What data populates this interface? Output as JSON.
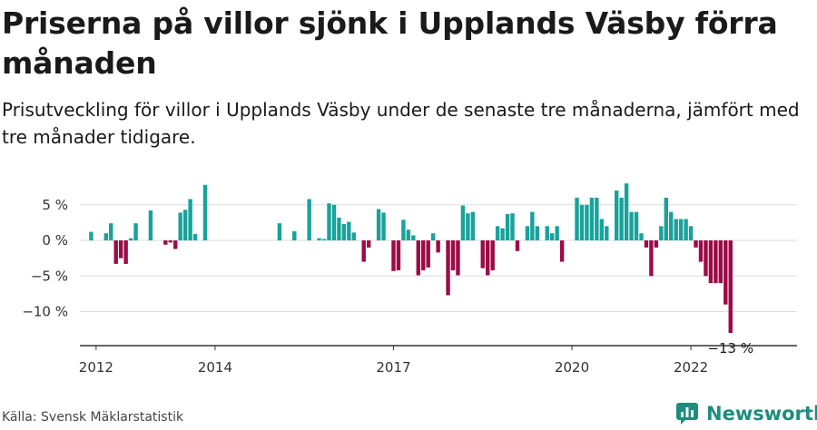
{
  "header": {
    "title": "Priserna på villor sjönk i Upplands Väsby förra månaden",
    "subtitle": "Prisutveckling för villor i Upplands Väsby under de senaste tre månaderna, jämfört med tre månader tidigare."
  },
  "footer": {
    "source": "Källa: Svensk Mäklarstatistik",
    "brand": "Newsworthy"
  },
  "colors": {
    "positive": "#17a39b",
    "negative": "#9c0a47",
    "grid": "#dddddd",
    "axis": "#333333",
    "brand": "#1e8c7e"
  },
  "chart_data": {
    "type": "bar",
    "title": "Priserna på villor sjönk i Upplands Väsby förra månaden",
    "ylabel": "",
    "xlabel": "",
    "ylim": [
      -15,
      8
    ],
    "y_ticks": [
      5,
      0,
      -5,
      -10
    ],
    "y_tick_labels": [
      "5 %",
      "0 %",
      "−5 %",
      "−10 %"
    ],
    "x_ticks": [
      2012,
      2014,
      2017,
      2020,
      2022
    ],
    "x_tick_labels": [
      "2012",
      "2014",
      "2017",
      "2020",
      "2022"
    ],
    "grid": true,
    "start": "2011-10",
    "series": [
      {
        "values": [
          null,
          null,
          1.2,
          null,
          null,
          1.0,
          2.4,
          -3.3,
          -2.5,
          -3.3,
          0.3,
          2.4,
          null,
          null,
          4.2,
          null,
          null,
          -0.6,
          -0.3,
          -1.2,
          3.9,
          4.3,
          5.8,
          0.9,
          null,
          7.8,
          null,
          null,
          null,
          null,
          null,
          null,
          null,
          null,
          null,
          null,
          null,
          null,
          null,
          null,
          2.4,
          null,
          null,
          1.3,
          null,
          null,
          5.8,
          null,
          0.3,
          0.2,
          5.2,
          5.0,
          3.2,
          2.3,
          2.6,
          1.1,
          null,
          -3.0,
          -1.0,
          null,
          4.4,
          3.9,
          null,
          -4.3,
          -4.2,
          2.9,
          1.5,
          0.7,
          -4.9,
          -4.2,
          -3.8,
          1.0,
          -1.7,
          null,
          -7.7,
          -4.2,
          -4.9,
          4.9,
          3.8,
          4.0,
          null,
          -3.9,
          -4.9,
          -4.2,
          2.0,
          1.7,
          3.7,
          3.8,
          -1.5,
          null,
          2.0,
          4.0,
          2.0,
          null,
          2.0,
          1.0,
          2.0,
          -3.0,
          null,
          null,
          6.0,
          5.0,
          5.0,
          6.0,
          6.0,
          3.0,
          2.0,
          null,
          7.0,
          6.0,
          8.0,
          4.0,
          4.0,
          1.0,
          -1.0,
          -5.0,
          -1.0,
          2.0,
          6.0,
          4.0,
          3.0,
          3.0,
          3.0,
          2.0,
          -1.0,
          -3.0,
          -5.0,
          -6.0,
          -6.0,
          -6.0,
          -9.0,
          -13.0
        ],
        "last_label": "−13 %"
      }
    ]
  }
}
